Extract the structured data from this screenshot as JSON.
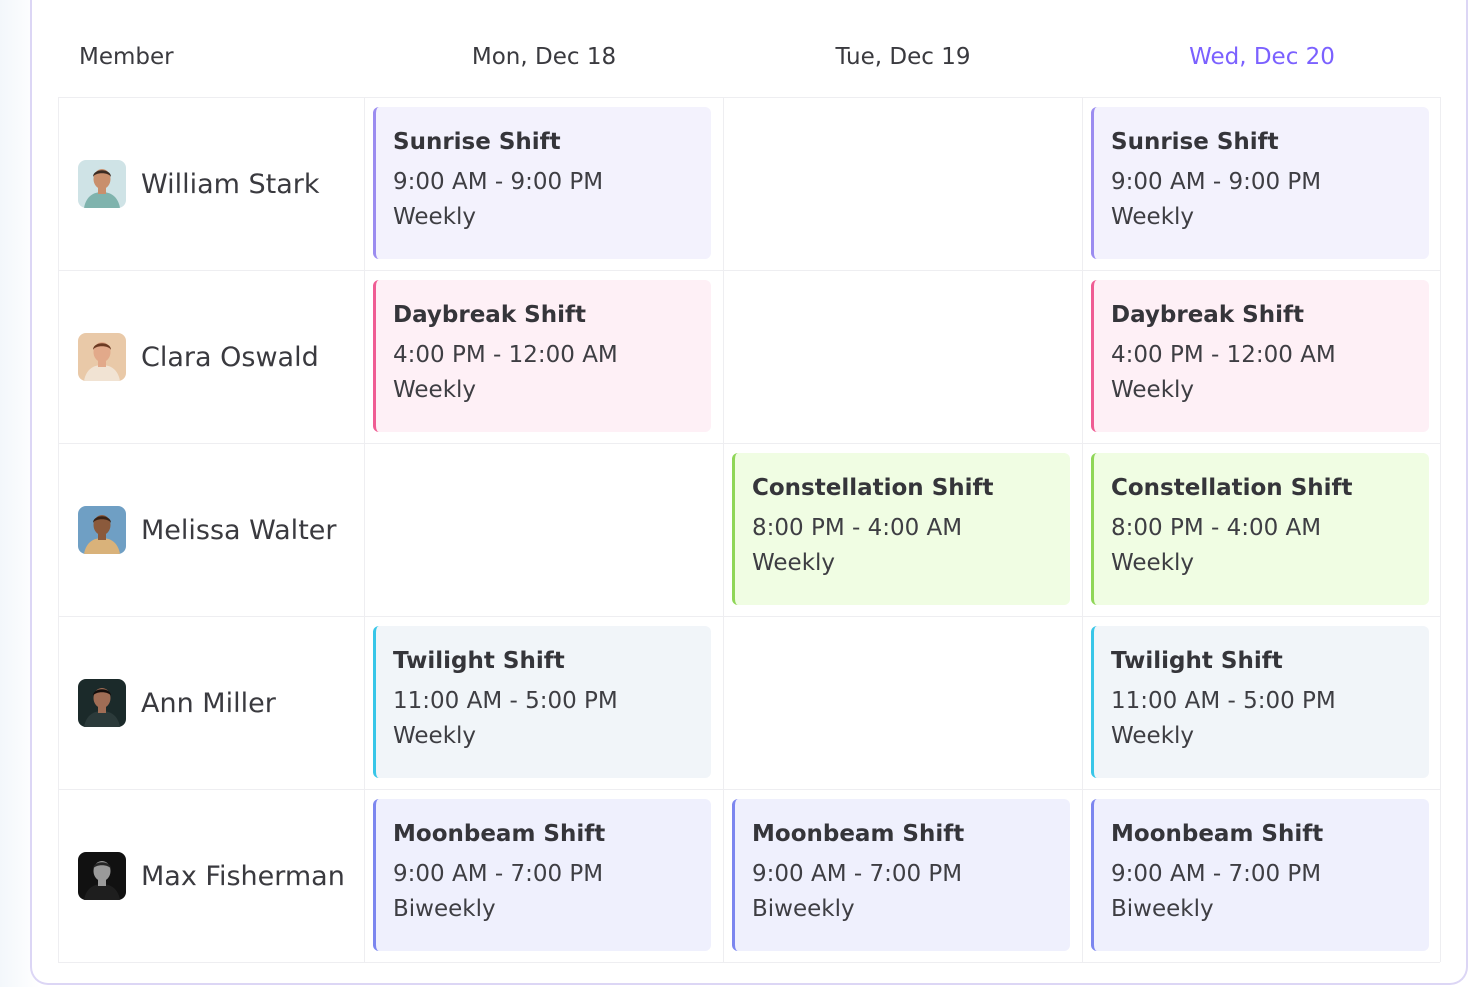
{
  "header": {
    "member_label": "Member",
    "days": [
      {
        "label": "Mon, Dec 18",
        "today": false
      },
      {
        "label": "Tue, Dec 19",
        "today": false
      },
      {
        "label": "Wed, Dec 20",
        "today": true
      }
    ]
  },
  "colors": {
    "today": "#7b61ff",
    "sunrise": {
      "bg": "#f3f2fd",
      "border": "#9b8cf0"
    },
    "daybreak": {
      "bg": "#fef0f6",
      "border": "#ef5c93"
    },
    "constellation": {
      "bg": "#f0fde3",
      "border": "#8fd657"
    },
    "twilight": {
      "bg": "#f1f5f9",
      "border": "#38c6e8"
    },
    "moonbeam": {
      "bg": "#eff0fd",
      "border": "#7c86ef"
    }
  },
  "members": [
    {
      "name": "William Stark",
      "avatar_icon": "man-bearded-avatar-icon",
      "shifts": [
        {
          "name": "Sunrise Shift",
          "time": "9:00 AM - 9:00 PM",
          "frequency": "Weekly",
          "type": "sunrise"
        },
        null,
        {
          "name": "Sunrise Shift",
          "time": "9:00 AM - 9:00 PM",
          "frequency": "Weekly",
          "type": "sunrise"
        }
      ]
    },
    {
      "name": "Clara Oswald",
      "avatar_icon": "woman-long-hair-avatar-icon",
      "shifts": [
        {
          "name": "Daybreak Shift",
          "time": "4:00 PM - 12:00 AM",
          "frequency": "Weekly",
          "type": "daybreak"
        },
        null,
        {
          "name": "Daybreak Shift",
          "time": "4:00 PM - 12:00 AM",
          "frequency": "Weekly",
          "type": "daybreak"
        }
      ]
    },
    {
      "name": "Melissa Walter",
      "avatar_icon": "woman-curly-hair-avatar-icon",
      "shifts": [
        null,
        {
          "name": "Constellation Shift",
          "time": "8:00 PM - 4:00 AM",
          "frequency": "Weekly",
          "type": "constellation"
        },
        {
          "name": "Constellation Shift",
          "time": "8:00 PM - 4:00 AM",
          "frequency": "Weekly",
          "type": "constellation"
        }
      ]
    },
    {
      "name": "Ann Miller",
      "avatar_icon": "woman-dark-portrait-avatar-icon",
      "shifts": [
        {
          "name": "Twilight Shift",
          "time": "11:00 AM - 5:00 PM",
          "frequency": "Weekly",
          "type": "twilight"
        },
        null,
        {
          "name": "Twilight Shift",
          "time": "11:00 AM - 5:00 PM",
          "frequency": "Weekly",
          "type": "twilight"
        }
      ]
    },
    {
      "name": "Max Fisherman",
      "avatar_icon": "man-monochrome-avatar-icon",
      "shifts": [
        {
          "name": "Moonbeam Shift",
          "time": "9:00 AM - 7:00 PM",
          "frequency": "Biweekly",
          "type": "moonbeam"
        },
        {
          "name": "Moonbeam Shift",
          "time": "9:00 AM - 7:00 PM",
          "frequency": "Biweekly",
          "type": "moonbeam"
        },
        {
          "name": "Moonbeam Shift",
          "time": "9:00 AM - 7:00 PM",
          "frequency": "Biweekly",
          "type": "moonbeam"
        }
      ]
    }
  ]
}
